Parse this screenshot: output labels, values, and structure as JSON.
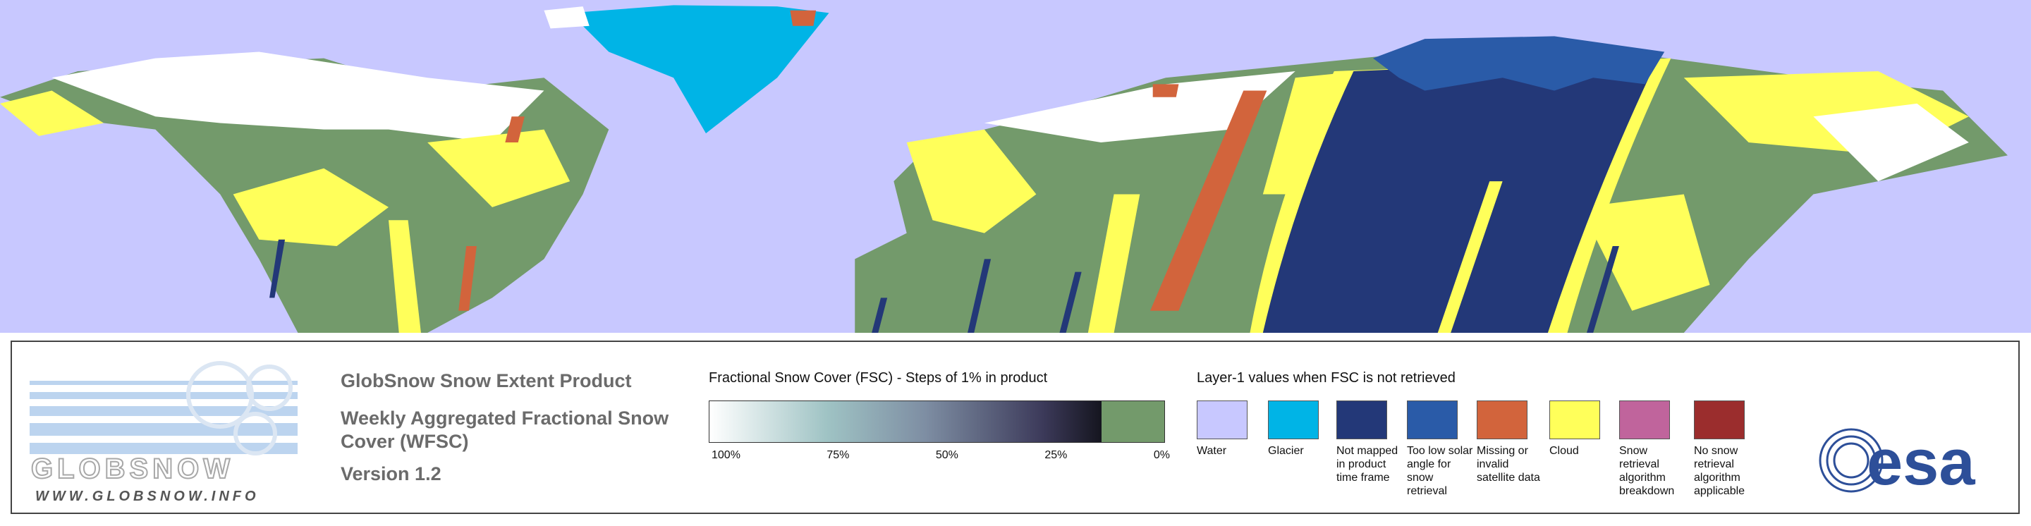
{
  "logo": {
    "name": "GLOBSNOW",
    "url": "WWW.GLOBSNOW.INFO"
  },
  "product": {
    "title": "GlobSnow Snow Extent Product",
    "subtitle": "Weekly Aggregated Fractional Snow Cover (WFSC)",
    "version": "Version 1.2"
  },
  "colorbar": {
    "title": "Fractional Snow Cover (FSC) - Steps of 1% in product",
    "labels": [
      "100%",
      "75%",
      "50%",
      "25%",
      "0%"
    ]
  },
  "layer1": {
    "title": "Layer-1 values when FSC is not retrieved",
    "items": [
      {
        "label": "Water",
        "color": "#c8c8ff"
      },
      {
        "label": "Glacier",
        "color": "#00b4e6"
      },
      {
        "label": "Not mapped in product time frame",
        "color": "#233878"
      },
      {
        "label": "Too low solar angle for snow retrieval",
        "color": "#2a5ba8"
      },
      {
        "label": "Missing or invalid satellite data",
        "color": "#d2643c"
      },
      {
        "label": "Cloud",
        "color": "#ffff5a"
      },
      {
        "label": "Snow retrieval algorithm breakdown",
        "color": "#c0649c"
      },
      {
        "label": "No snow retrieval algorithm applicable",
        "color": "#9b2d2d"
      }
    ]
  },
  "esa": {
    "name": "esa"
  }
}
